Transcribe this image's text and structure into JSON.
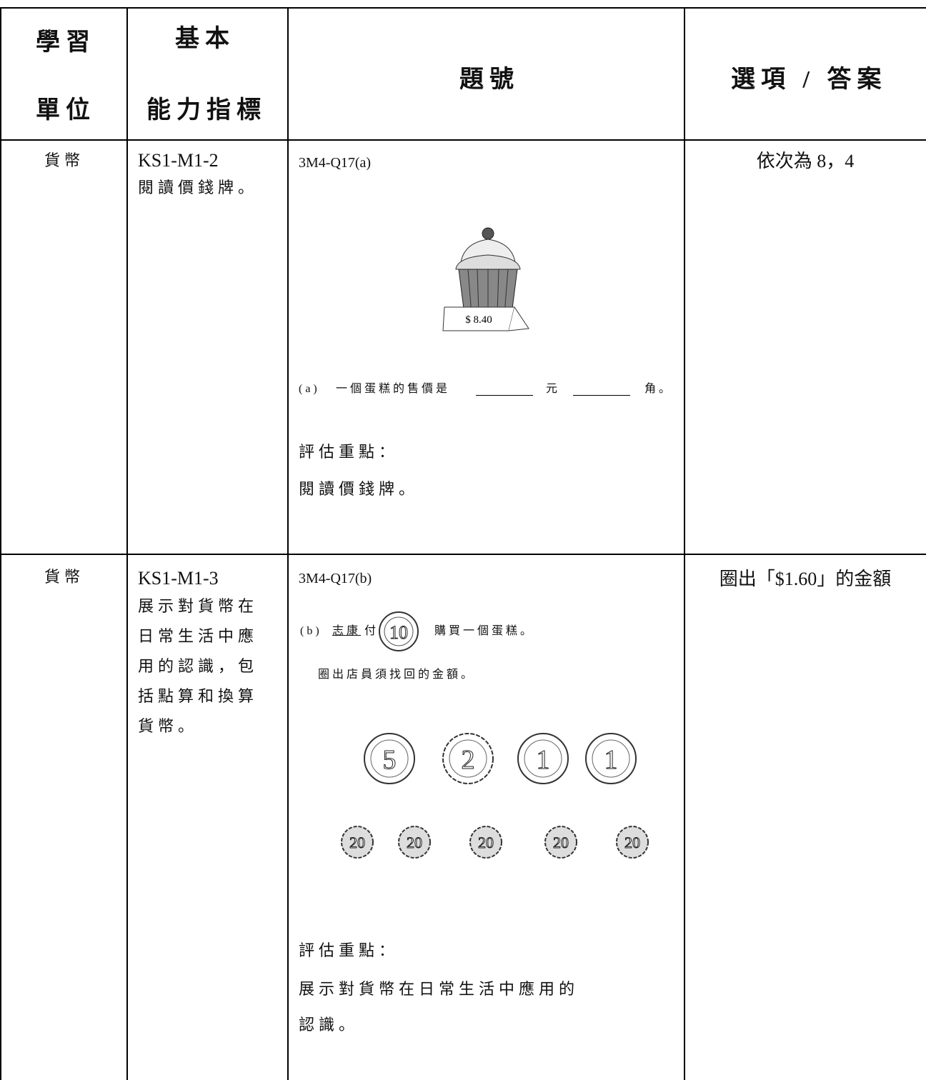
{
  "header": [
    {
      "lines": [
        "學習",
        "單位"
      ]
    },
    {
      "lines": [
        "基本",
        "能力指標"
      ]
    },
    {
      "lines": [
        "題號"
      ]
    },
    {
      "lines": [
        "選項 / 答案"
      ]
    }
  ],
  "rows": [
    {
      "unit": "貨幣",
      "indicator_code": "KS1-M1-2",
      "indicator_lines": [
        "閱讀價錢牌。"
      ],
      "question_id": "3M4-Q17(a)",
      "price_tag": "$ 8.40",
      "question": {
        "label": "(a)",
        "text": "一個蛋糕的售價是",
        "unit1": "元",
        "unit2": "角。"
      },
      "focus_title": "評估重點：",
      "focus_lines": [
        "閱讀價錢牌。"
      ],
      "answer": "依次為 8，4"
    },
    {
      "unit": "貨幣",
      "indicator_code": "KS1-M1-3",
      "indicator_lines": [
        "展示對貨幣在",
        "日常生活中應",
        "用的認識，包",
        "括點算和換算",
        "貨幣。"
      ],
      "question_id": "3M4-Q17(b)",
      "question": {
        "label": "(b)",
        "name": "志康",
        "pay": "付",
        "paid_coin": "10",
        "buy": "購買一個蛋糕。",
        "instruction": "圈出店員須找回的金額。"
      },
      "coins_large": [
        "5",
        "2",
        "1",
        "1"
      ],
      "coins_small": [
        "20",
        "20",
        "20",
        "20",
        "20"
      ],
      "focus_title": "評估重點：",
      "focus_lines": [
        "展示對貨幣在日常生活中應用的",
        "認識。"
      ],
      "answer": "圈出「$1.60」的金額"
    }
  ]
}
